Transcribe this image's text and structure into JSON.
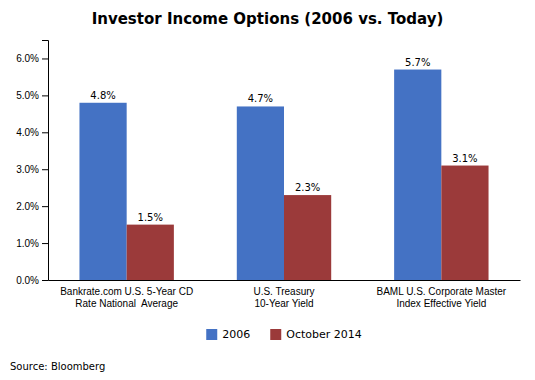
{
  "chart_data": {
    "type": "bar",
    "title": "Investor Income Options (2006 vs. Today)",
    "categories": [
      "Bankrate.com U.S. 5-Year CD\nRate National  Average",
      "U.S. Treasury\n10-Year Yield",
      "BAML U.S. Corporate Master\nIndex Effective Yield"
    ],
    "series": [
      {
        "name": "2006",
        "color": "#4472C4",
        "values": [
          4.8,
          4.7,
          5.7
        ],
        "value_labels": [
          "4.8%",
          "4.7%",
          "5.7%"
        ]
      },
      {
        "name": "October 2014",
        "color": "#9B3A3A",
        "values": [
          1.5,
          2.3,
          3.1
        ],
        "value_labels": [
          "1.5%",
          "2.3%",
          "3.1%"
        ]
      }
    ],
    "ylim": [
      0,
      6.5
    ],
    "yticks": [
      {
        "value": 0.0,
        "label": "0.0%"
      },
      {
        "value": 1.0,
        "label": "1.0%"
      },
      {
        "value": 2.0,
        "label": "2.0%"
      },
      {
        "value": 3.0,
        "label": "3.0%"
      },
      {
        "value": 4.0,
        "label": "4.0%"
      },
      {
        "value": 5.0,
        "label": "5.0%"
      },
      {
        "value": 6.0,
        "label": "6.0%"
      }
    ],
    "data_labels": true,
    "grid": false,
    "legend": "bottom",
    "annotations": [
      "Source: Bloomberg"
    ]
  }
}
